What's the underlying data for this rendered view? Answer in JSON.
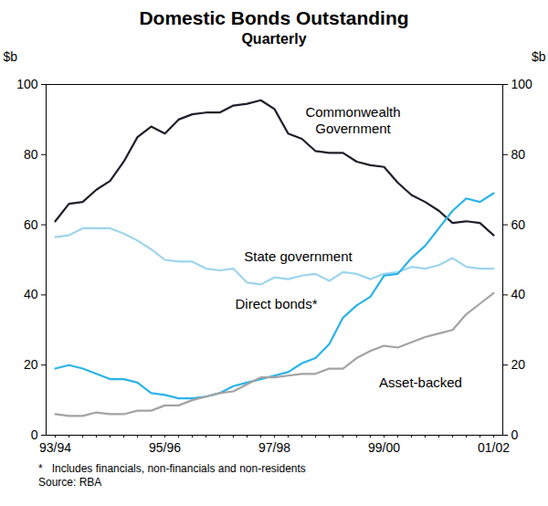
{
  "chart_data": {
    "type": "line",
    "title": "Domestic Bonds Outstanding",
    "subtitle": "Quarterly",
    "y_label": "$b",
    "notes": [
      "*   Includes financials, non-financials and non-residents",
      "Source: RBA"
    ],
    "categories": [
      "93/94",
      null,
      null,
      null,
      null,
      null,
      null,
      null,
      "95/96",
      null,
      null,
      null,
      null,
      null,
      null,
      null,
      "97/98",
      null,
      null,
      null,
      null,
      null,
      null,
      null,
      "99/00",
      null,
      null,
      null,
      null,
      null,
      null,
      null,
      "01/02"
    ],
    "ylim": [
      0,
      100
    ],
    "yticks": [
      0,
      20,
      40,
      60,
      80,
      100
    ],
    "grid": false,
    "series": [
      {
        "name": "Commonwealth Government",
        "color": "#1f1f2a",
        "values": [
          61,
          66,
          66.5,
          70,
          72.5,
          78,
          85,
          88,
          86,
          90,
          91.5,
          92,
          92,
          94,
          94.5,
          95.5,
          93,
          86,
          84.5,
          81,
          80.5,
          80.5,
          78,
          77,
          76.5,
          72,
          68.5,
          66.5,
          64,
          60.5,
          61,
          60.5,
          57
        ]
      },
      {
        "name": "State government",
        "color": "#9dd5ee",
        "values": [
          56.5,
          57,
          59,
          59,
          59,
          57.5,
          55.5,
          53,
          50,
          49.5,
          49.5,
          47.5,
          47,
          47.5,
          43.5,
          43,
          45,
          44.5,
          45.5,
          46,
          44,
          46.5,
          46,
          44.5,
          46,
          46.5,
          48,
          47.5,
          48.5,
          50.5,
          48,
          47.5,
          47.5
        ]
      },
      {
        "name": "Direct bonds*",
        "color": "#2bb3e8",
        "values": [
          19,
          20,
          19,
          17.5,
          16,
          16,
          15,
          12,
          11.5,
          10.5,
          10.5,
          11,
          12,
          14,
          15,
          16,
          17,
          18,
          20.5,
          22,
          26,
          33.5,
          37,
          39.5,
          45.5,
          46,
          50.5,
          54,
          59,
          64,
          67.5,
          66.5,
          69
        ]
      },
      {
        "name": "Asset-backed",
        "color": "#a3a3a3",
        "values": [
          6,
          5.5,
          5.5,
          6.5,
          6,
          6,
          7,
          7,
          8.5,
          8.5,
          10,
          11,
          12,
          12.5,
          14.5,
          16.5,
          16.5,
          17,
          17.5,
          17.5,
          19,
          19,
          22,
          24,
          25.5,
          25,
          26.5,
          28,
          29,
          30,
          34.5,
          37.5,
          40.5
        ]
      }
    ]
  }
}
